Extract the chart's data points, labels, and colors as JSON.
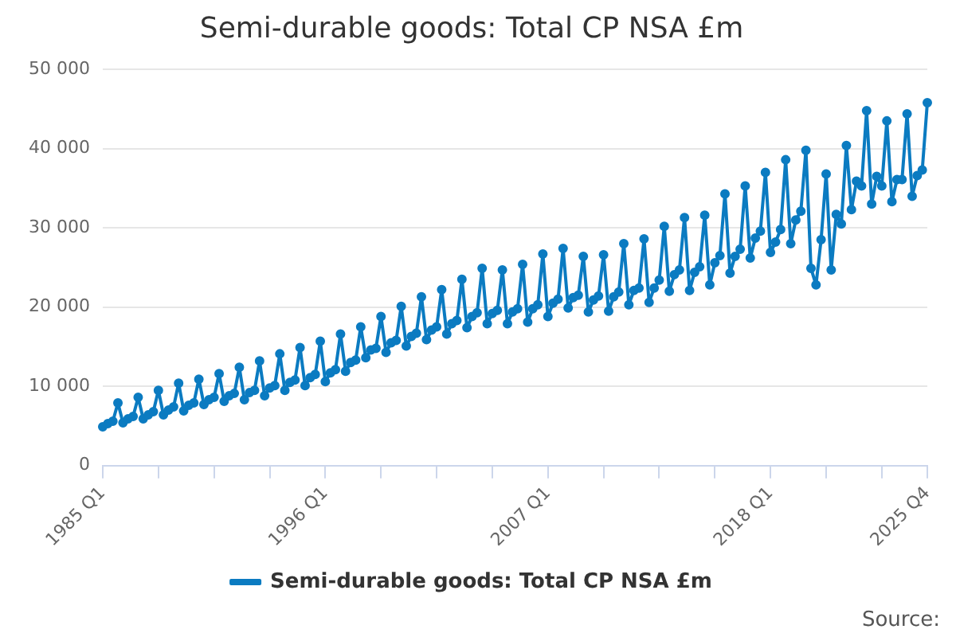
{
  "chart_data": {
    "type": "line",
    "title": "Semi-durable goods: Total CP NSA £m",
    "categories": [
      "1985 Q1",
      null,
      null,
      null,
      null,
      null,
      null,
      null,
      null,
      null,
      null,
      null,
      null,
      null,
      null,
      null,
      null,
      null,
      null,
      null,
      null,
      null,
      null,
      null,
      null,
      null,
      null,
      null,
      null,
      null,
      null,
      null,
      null,
      null,
      null,
      null,
      null,
      null,
      null,
      null,
      null,
      null,
      null,
      null,
      "1996 Q1",
      null,
      null,
      null,
      null,
      null,
      null,
      null,
      null,
      null,
      null,
      null,
      null,
      null,
      null,
      null,
      null,
      null,
      null,
      null,
      null,
      null,
      null,
      null,
      null,
      null,
      null,
      null,
      null,
      null,
      null,
      null,
      null,
      null,
      null,
      null,
      null,
      null,
      null,
      null,
      null,
      null,
      null,
      null,
      "2007 Q1",
      null,
      null,
      null,
      null,
      null,
      null,
      null,
      null,
      null,
      null,
      null,
      null,
      null,
      null,
      null,
      null,
      null,
      null,
      null,
      null,
      null,
      null,
      null,
      null,
      null,
      null,
      null,
      null,
      null,
      null,
      null,
      null,
      null,
      null,
      null,
      null,
      null,
      null,
      null,
      null,
      null,
      null,
      null,
      "2018 Q1",
      null,
      null,
      null,
      null,
      null,
      null,
      null,
      null,
      null,
      null,
      null,
      null,
      null,
      null,
      null,
      null,
      null,
      null,
      null,
      null,
      null,
      null,
      null,
      null,
      null,
      null,
      null,
      null,
      null,
      null,
      "2025 Q4"
    ],
    "series": [
      {
        "name": "Semi-durable goods: Total CP NSA £m",
        "color": "#0b7bc1",
        "values": [
          4900,
          5300,
          5600,
          7900,
          5400,
          5900,
          6200,
          8600,
          5900,
          6400,
          6800,
          9500,
          6400,
          7000,
          7400,
          10400,
          6900,
          7600,
          7900,
          10900,
          7700,
          8300,
          8600,
          11600,
          8100,
          8800,
          9100,
          12400,
          8300,
          9200,
          9500,
          13200,
          8800,
          9800,
          10100,
          14100,
          9500,
          10500,
          10800,
          14900,
          10100,
          11100,
          11500,
          15700,
          10600,
          11700,
          12100,
          16600,
          11900,
          13000,
          13300,
          17500,
          13600,
          14600,
          14800,
          18800,
          14300,
          15500,
          15800,
          20100,
          15100,
          16300,
          16700,
          21300,
          15900,
          17100,
          17500,
          22200,
          16600,
          17900,
          18300,
          23500,
          17400,
          18800,
          19300,
          24900,
          17900,
          19200,
          19600,
          24700,
          17900,
          19400,
          19800,
          25400,
          18100,
          19800,
          20300,
          26700,
          18800,
          20500,
          21000,
          27400,
          19900,
          21200,
          21500,
          26400,
          19400,
          20900,
          21400,
          26600,
          19500,
          21300,
          21900,
          28000,
          20300,
          22100,
          22400,
          28600,
          20600,
          22400,
          23400,
          30200,
          22000,
          24100,
          24700,
          31300,
          22100,
          24400,
          25100,
          31600,
          22800,
          25600,
          26500,
          34300,
          24300,
          26400,
          27300,
          35300,
          26200,
          28700,
          29600,
          37000,
          26900,
          28200,
          29800,
          38600,
          28000,
          31000,
          32100,
          39800,
          24900,
          22800,
          28500,
          36800,
          24700,
          31700,
          30500,
          40400,
          32300,
          35900,
          35300,
          44800,
          33000,
          36500,
          35300,
          43500,
          33300,
          36100,
          36100,
          44400,
          34000,
          36600,
          37300,
          45800
        ]
      }
    ],
    "ylim": [
      0,
      50000
    ],
    "yticks": [
      0,
      {
        "value": 10000,
        "label": "10 000"
      },
      {
        "value": 20000,
        "label": "20 000"
      },
      {
        "value": 30000,
        "label": "30 000"
      },
      {
        "value": 40000,
        "label": "40 000"
      },
      {
        "value": 50000,
        "label": "50 000"
      }
    ],
    "grid": "y",
    "legend": "bottom",
    "marker": "circle",
    "line_style": "solid",
    "annotations": [
      "Source:"
    ]
  }
}
